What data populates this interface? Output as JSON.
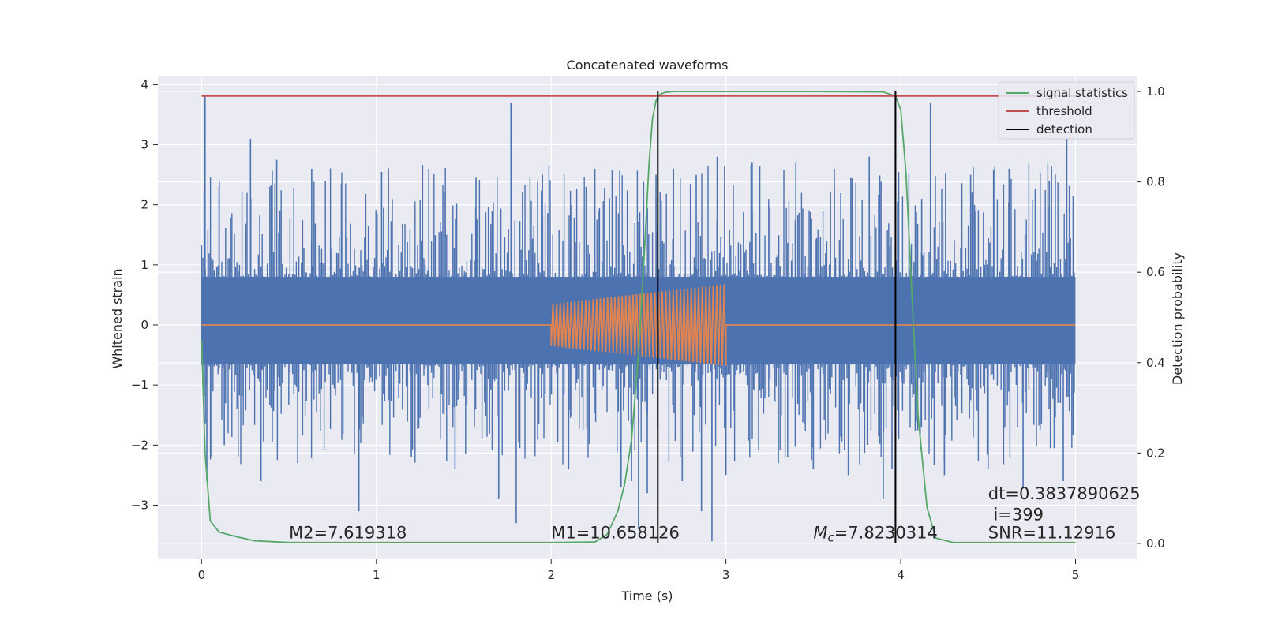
{
  "chart_data": {
    "type": "line",
    "title": "Concatenated waveforms",
    "xlabel": "Time (s)",
    "ylabel_left": "Whitened strain",
    "ylabel_right": "Detection probability",
    "xlim": [
      -0.25,
      5.35
    ],
    "ylim_left": [
      -3.9,
      4.15
    ],
    "ylim_right": [
      -0.035,
      1.035
    ],
    "x_ticks": [
      0,
      1,
      2,
      3,
      4,
      5
    ],
    "y_left_ticks": [
      -3,
      -2,
      -1,
      0,
      1,
      2,
      3,
      4
    ],
    "y_right_ticks": [
      0.0,
      0.2,
      0.4,
      0.6,
      0.8,
      1.0
    ],
    "grid": true,
    "legend_position": "top-right",
    "colors": {
      "strain": "#4c72b0",
      "template": "#dd8452",
      "signal_statistics": "#55a868",
      "threshold": "#c44e52",
      "detection": "#000000",
      "background": "#eaeaf2",
      "grid": "#ffffff"
    },
    "series": [
      {
        "name": "signal statistics",
        "axis": "right",
        "color": "#55a868",
        "x": [
          0.0,
          0.02,
          0.05,
          0.1,
          0.2,
          0.3,
          0.5,
          1.0,
          1.5,
          2.0,
          2.25,
          2.32,
          2.38,
          2.42,
          2.46,
          2.5,
          2.53,
          2.56,
          2.58,
          2.6,
          2.62,
          2.65,
          2.7,
          2.8,
          3.0,
          3.5,
          3.9,
          3.97,
          4.0,
          4.03,
          4.06,
          4.1,
          4.15,
          4.2,
          4.3,
          4.5,
          5.0
        ],
        "y": [
          0.45,
          0.2,
          0.05,
          0.025,
          0.015,
          0.006,
          0.002,
          0.002,
          0.002,
          0.002,
          0.003,
          0.02,
          0.07,
          0.13,
          0.23,
          0.42,
          0.62,
          0.84,
          0.94,
          0.98,
          0.993,
          0.998,
          1.0,
          1.0,
          1.0,
          1.0,
          0.999,
          0.99,
          0.96,
          0.82,
          0.58,
          0.28,
          0.08,
          0.012,
          0.002,
          0.002,
          0.002
        ]
      },
      {
        "name": "threshold",
        "axis": "right",
        "color": "#c44e52",
        "x": [
          0,
          5
        ],
        "y": [
          0.99,
          0.99
        ]
      },
      {
        "name": "detection",
        "axis": "right",
        "color": "#000000",
        "x_lines": [
          2.61,
          3.97
        ],
        "y_range": [
          0.0,
          1.0
        ]
      }
    ],
    "strain": {
      "axis": "left",
      "color": "#4c72b0",
      "x_range": [
        0,
        5
      ],
      "band_pos": 0.8,
      "band_neg": -0.65,
      "spikes": [
        [
          0.02,
          3.8
        ],
        [
          0.03,
          -2.6
        ],
        [
          0.1,
          2.3
        ],
        [
          0.13,
          -2.0
        ],
        [
          0.28,
          3.1
        ],
        [
          0.34,
          -2.6
        ],
        [
          0.43,
          2.75
        ],
        [
          0.55,
          -2.3
        ],
        [
          0.63,
          2.6
        ],
        [
          0.8,
          2.35
        ],
        [
          0.9,
          -3.1
        ],
        [
          1.03,
          2.55
        ],
        [
          1.2,
          -2.2
        ],
        [
          1.3,
          2.6
        ],
        [
          1.45,
          -2.4
        ],
        [
          1.57,
          2.45
        ],
        [
          1.7,
          -2.9
        ],
        [
          1.77,
          3.7
        ],
        [
          1.8,
          -3.3
        ],
        [
          1.95,
          2.5
        ],
        [
          2.1,
          -2.4
        ],
        [
          2.2,
          2.3
        ],
        [
          2.25,
          2.6
        ],
        [
          2.4,
          -2.7
        ],
        [
          2.46,
          -2.6
        ],
        [
          2.5,
          -3.4
        ],
        [
          2.55,
          -2.8
        ],
        [
          2.6,
          2.5
        ],
        [
          2.7,
          2.6
        ],
        [
          2.75,
          -2.6
        ],
        [
          2.83,
          2.5
        ],
        [
          2.86,
          -3.1
        ],
        [
          2.92,
          -3.6
        ],
        [
          2.95,
          2.8
        ],
        [
          3.0,
          -2.5
        ],
        [
          3.15,
          2.7
        ],
        [
          3.3,
          -2.3
        ],
        [
          3.4,
          2.7
        ],
        [
          3.5,
          -2.4
        ],
        [
          3.62,
          2.6
        ],
        [
          3.7,
          -2.5
        ],
        [
          3.82,
          2.8
        ],
        [
          3.9,
          -2.9
        ],
        [
          3.95,
          -2.4
        ],
        [
          4.12,
          2.1
        ],
        [
          4.17,
          3.7
        ],
        [
          4.25,
          -2.5
        ],
        [
          4.4,
          2.5
        ],
        [
          4.5,
          -2.4
        ],
        [
          4.62,
          2.6
        ],
        [
          4.7,
          -2.7
        ],
        [
          4.85,
          2.4
        ],
        [
          4.93,
          -2.6
        ],
        [
          4.95,
          3.1
        ]
      ]
    },
    "template": {
      "axis": "left",
      "color": "#dd8452",
      "x_range": [
        0,
        5
      ],
      "chirp_start": 2.0,
      "chirp_end": 3.0,
      "amp_start": 0.35,
      "amp_end": 0.68
    },
    "annotations": [
      {
        "text": "M2=7.619318",
        "x": 0.5,
        "y": -3.55
      },
      {
        "text": "M1=10.658126",
        "x": 2.0,
        "y": -3.55
      },
      {
        "text_symbol": "M",
        "text_sub": "c",
        "text_rest": "=7.8230314",
        "x": 3.5,
        "y": -3.55
      },
      {
        "text": "dt=0.3837890625",
        "x": 4.5,
        "y": -2.9
      },
      {
        "text": " i=399",
        "x": 4.5,
        "y": -3.25
      },
      {
        "text": "SNR=11.12916",
        "x": 4.5,
        "y": -3.55
      }
    ]
  }
}
